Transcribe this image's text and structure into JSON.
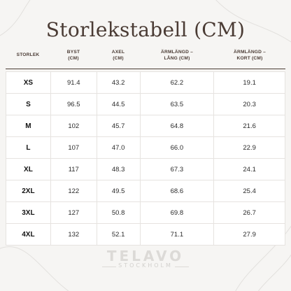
{
  "title": "Storlekstabell (CM)",
  "columns": [
    "STORLEK",
    "BYST\n(CM)",
    "AXEL\n(CM)",
    "ÄRMLÄNGD –\nLÅNG (CM)",
    "ÄRMLÄNGD –\nKORT (CM)"
  ],
  "header": {
    "c0": "STORLEK",
    "c1a": "BYST",
    "c1b": "(CM)",
    "c2a": "AXEL",
    "c2b": "(CM)",
    "c3a": "ÄRMLÄNGD –",
    "c3b": "LÅNG (CM)",
    "c4a": "ÄRMLÄNGD –",
    "c4b": "KORT (CM)"
  },
  "rows": [
    [
      "XS",
      "91.4",
      "43.2",
      "62.2",
      "19.1"
    ],
    [
      "S",
      "96.5",
      "44.5",
      "63.5",
      "20.3"
    ],
    [
      "M",
      "102",
      "45.7",
      "64.8",
      "21.6"
    ],
    [
      "L",
      "107",
      "47.0",
      "66.0",
      "22.9"
    ],
    [
      "XL",
      "117",
      "48.3",
      "67.3",
      "24.1"
    ],
    [
      "2XL",
      "122",
      "49.5",
      "68.6",
      "25.4"
    ],
    [
      "3XL",
      "127",
      "50.8",
      "69.8",
      "26.7"
    ],
    [
      "4XL",
      "132",
      "52.1",
      "71.1",
      "27.9"
    ]
  ],
  "brand": {
    "name": "TELAVO",
    "sub": "STOCKHOLM"
  },
  "colors": {
    "title": "#4a3b34",
    "background": "#f6f5f3",
    "watermark": "#dcdad7"
  }
}
